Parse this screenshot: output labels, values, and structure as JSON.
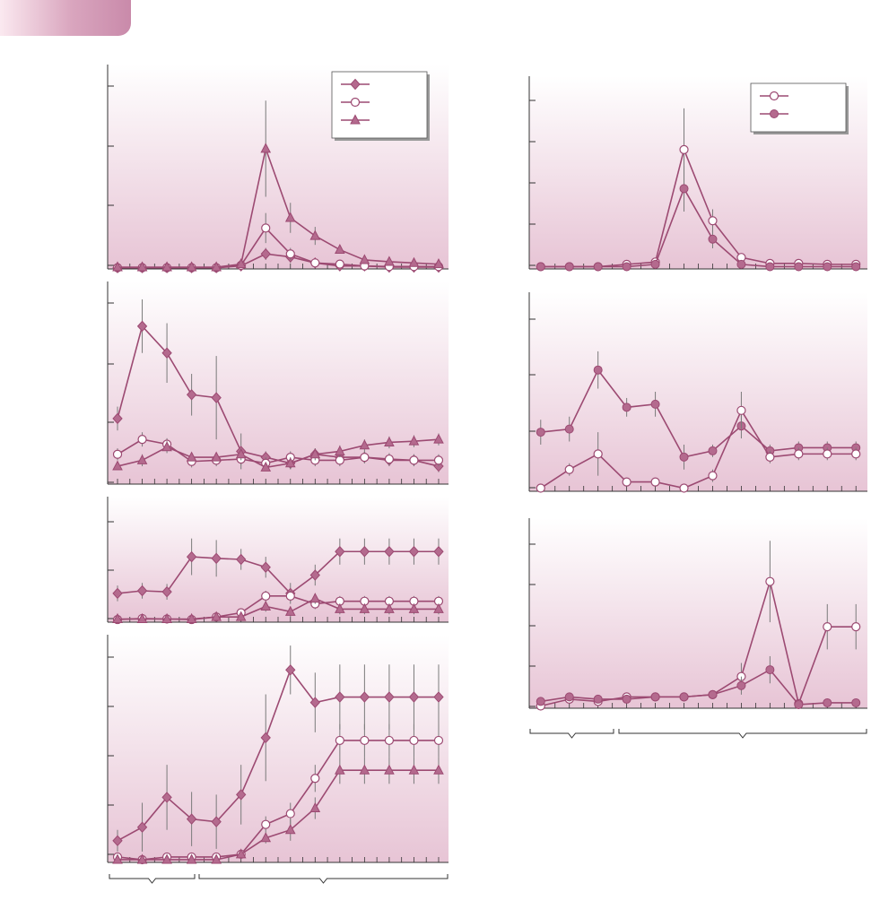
{
  "colors": {
    "series": "#9c4a72",
    "marker_fill": "#b46a8e",
    "open_fill": "#ffffff",
    "panel_top": "#ffffff",
    "panel_bottom": "#e7c4d5",
    "axis": "#333333",
    "errorbar": "#7a7a7a",
    "tab": "#d9a5be"
  },
  "chart_data": [
    {
      "type": "line",
      "title": "",
      "legend": {
        "position": "top-right",
        "entries": [
          "",
          "",
          ""
        ]
      },
      "x": [
        1,
        2,
        3,
        4,
        5,
        6,
        7,
        8,
        9,
        10,
        11,
        12,
        13,
        14
      ],
      "xlim": [
        0.6,
        14.4
      ],
      "ylim": [
        0,
        3.4
      ],
      "grid": false,
      "series": [
        {
          "marker": "diamond",
          "values": [
            0.02,
            0.02,
            0.02,
            0.02,
            0.02,
            0.05,
            0.25,
            0.2,
            0.1,
            0.05,
            0.05,
            0.03,
            0.03,
            0.03
          ],
          "error": [
            0,
            0,
            0,
            0,
            0,
            0,
            0.1,
            0.1,
            0.05,
            0,
            0,
            0,
            0,
            0
          ]
        },
        {
          "marker": "circle-open",
          "values": [
            0.02,
            0.02,
            0.02,
            0.02,
            0.02,
            0.06,
            0.68,
            0.25,
            0.1,
            0.08,
            0.05,
            0.04,
            0.04,
            0.04
          ],
          "error": [
            0,
            0,
            0,
            0,
            0,
            0,
            0.25,
            0.1,
            0.05,
            0,
            0,
            0,
            0,
            0
          ]
        },
        {
          "marker": "triangle",
          "values": [
            0.03,
            0.03,
            0.03,
            0.03,
            0.03,
            0.08,
            2.0,
            0.85,
            0.55,
            0.32,
            0.15,
            0.12,
            0.1,
            0.08
          ],
          "error": [
            0,
            0,
            0,
            0,
            0,
            0,
            0.8,
            0.25,
            0.15,
            0.05,
            0,
            0,
            0,
            0
          ]
        }
      ]
    },
    {
      "type": "line",
      "title": "",
      "legend": {
        "position": "top-right",
        "entries": [
          "",
          ""
        ]
      },
      "x": [
        1,
        2,
        3,
        4,
        5,
        6,
        7,
        8,
        9,
        10,
        11,
        12
      ],
      "xlim": [
        0.6,
        12.4
      ],
      "ylim": [
        0,
        4.2
      ],
      "grid": false,
      "series": [
        {
          "marker": "circle-open",
          "values": [
            0.05,
            0.05,
            0.05,
            0.1,
            0.15,
            2.6,
            1.05,
            0.25,
            0.12,
            0.12,
            0.1,
            0.1
          ],
          "error": [
            0,
            0,
            0,
            0,
            0,
            0.9,
            0.25,
            0.05,
            0,
            0,
            0,
            0
          ]
        },
        {
          "marker": "circle-filled",
          "values": [
            0.05,
            0.05,
            0.05,
            0.05,
            0.1,
            1.75,
            0.65,
            0.1,
            0.05,
            0.05,
            0.05,
            0.05
          ],
          "error": [
            0,
            0,
            0,
            0,
            0,
            0.5,
            0.2,
            0.05,
            0,
            0,
            0,
            0
          ]
        }
      ]
    },
    {
      "type": "line",
      "title": "",
      "x": [
        1,
        2,
        3,
        4,
        5,
        6,
        7,
        8,
        9,
        10,
        11,
        12,
        13,
        14
      ],
      "xlim": [
        0.6,
        14.4
      ],
      "ylim": [
        0,
        3.4
      ],
      "grid": false,
      "series": [
        {
          "marker": "diamond",
          "values": [
            1.1,
            2.65,
            2.2,
            1.5,
            1.45,
            0.55,
            0.45,
            0.35,
            0.5,
            0.45,
            0.45,
            0.4,
            0.4,
            0.3
          ],
          "error": [
            0.2,
            0.45,
            0.5,
            0.35,
            0.7,
            0.3,
            0.1,
            0.1,
            0.1,
            0.1,
            0.1,
            0.1,
            0.1,
            0.1
          ]
        },
        {
          "marker": "circle-open",
          "values": [
            0.5,
            0.75,
            0.67,
            0.38,
            0.4,
            0.42,
            0.35,
            0.45,
            0.4,
            0.4,
            0.45,
            0.42,
            0.4,
            0.4
          ],
          "error": [
            0.1,
            0.12,
            0.1,
            0.1,
            0.1,
            0.1,
            0.1,
            0.1,
            0.1,
            0.1,
            0.1,
            0.1,
            0.1,
            0.1
          ]
        },
        {
          "marker": "triangle",
          "values": [
            0.3,
            0.4,
            0.62,
            0.45,
            0.45,
            0.5,
            0.28,
            0.35,
            0.5,
            0.55,
            0.65,
            0.7,
            0.72,
            0.75
          ],
          "error": [
            0.05,
            0.1,
            0.1,
            0.05,
            0.05,
            0.1,
            0.05,
            0.1,
            0.1,
            0.1,
            0.1,
            0.1,
            0.1,
            0.1
          ]
        }
      ]
    },
    {
      "type": "line",
      "title": "",
      "x": [
        1,
        2,
        3,
        4,
        5,
        6,
        7,
        8,
        9,
        10,
        11,
        12
      ],
      "xlim": [
        0.6,
        12.4
      ],
      "ylim": [
        0,
        3.2
      ],
      "grid": false,
      "series": [
        {
          "marker": "circle-filled",
          "values": [
            0.95,
            1.0,
            1.95,
            1.35,
            1.4,
            0.55,
            0.65,
            1.05,
            0.65,
            0.7,
            0.7,
            0.7
          ],
          "error": [
            0.2,
            0.2,
            0.3,
            0.15,
            0.2,
            0.2,
            0.1,
            0.2,
            0.1,
            0.1,
            0.1,
            0.1
          ]
        },
        {
          "marker": "circle-open",
          "values": [
            0.05,
            0.35,
            0.6,
            0.15,
            0.15,
            0.05,
            0.25,
            1.3,
            0.55,
            0.6,
            0.6,
            0.6
          ],
          "error": [
            0.05,
            0.1,
            0.35,
            0.05,
            0.05,
            0.05,
            0.1,
            0.3,
            0.1,
            0.1,
            0.1,
            0.1
          ]
        }
      ]
    },
    {
      "type": "line",
      "title": "",
      "x": [
        1,
        2,
        3,
        4,
        5,
        6,
        7,
        8,
        9,
        10,
        11,
        12,
        13,
        14
      ],
      "xlim": [
        0.6,
        14.4
      ],
      "ylim": [
        0,
        2.4
      ],
      "grid": false,
      "series": [
        {
          "marker": "diamond",
          "values": [
            0.55,
            0.6,
            0.58,
            1.25,
            1.22,
            1.2,
            1.05,
            0.55,
            0.9,
            1.35,
            1.35,
            1.35,
            1.35,
            1.35
          ],
          "error": [
            0.15,
            0.15,
            0.15,
            0.35,
            0.35,
            0.2,
            0.2,
            0.2,
            0.2,
            0.25,
            0.25,
            0.25,
            0.25,
            0.25
          ]
        },
        {
          "marker": "circle-open",
          "values": [
            0.05,
            0.07,
            0.06,
            0.05,
            0.1,
            0.18,
            0.5,
            0.5,
            0.35,
            0.4,
            0.4,
            0.4,
            0.4,
            0.4
          ],
          "error": [
            0.03,
            0.03,
            0.03,
            0.03,
            0.05,
            0.05,
            0.1,
            0.1,
            0.1,
            0.1,
            0.1,
            0.1,
            0.1,
            0.1
          ]
        },
        {
          "marker": "triangle",
          "values": [
            0.06,
            0.06,
            0.06,
            0.06,
            0.1,
            0.1,
            0.3,
            0.2,
            0.45,
            0.25,
            0.25,
            0.25,
            0.25,
            0.25
          ],
          "error": [
            0.03,
            0.03,
            0.03,
            0.03,
            0.05,
            0.05,
            0.1,
            0.1,
            0.1,
            0.1,
            0.1,
            0.1,
            0.1,
            0.1
          ]
        }
      ]
    },
    {
      "type": "line",
      "title": "",
      "x": [
        1,
        2,
        3,
        4,
        5,
        6,
        7,
        8,
        9,
        10,
        11,
        12
      ],
      "xlim": [
        0.6,
        12.4
      ],
      "ylim": [
        0,
        4.2
      ],
      "grid": false,
      "series": [
        {
          "marker": "circle-open",
          "values": [
            0.05,
            0.2,
            0.15,
            0.25,
            0.25,
            0.25,
            0.3,
            0.7,
            2.8,
            0.1,
            1.8,
            1.8
          ],
          "error": [
            0.05,
            0.05,
            0.05,
            0.05,
            0.05,
            0.05,
            0.05,
            0.3,
            0.9,
            0.05,
            0.5,
            0.5
          ]
        },
        {
          "marker": "circle-filled",
          "values": [
            0.15,
            0.25,
            0.2,
            0.2,
            0.25,
            0.25,
            0.3,
            0.5,
            0.85,
            0.08,
            0.12,
            0.12
          ],
          "error": [
            0.05,
            0.05,
            0.05,
            0.05,
            0.05,
            0.05,
            0.05,
            0.2,
            0.3,
            0.05,
            0.05,
            0.05
          ]
        }
      ]
    },
    {
      "type": "line",
      "title": "",
      "x": [
        1,
        2,
        3,
        4,
        5,
        6,
        7,
        8,
        9,
        10,
        11,
        12,
        13,
        14
      ],
      "xlim": [
        0.6,
        14.4
      ],
      "ylim": [
        0,
        4.2
      ],
      "grid": false,
      "series": [
        {
          "marker": "diamond",
          "values": [
            0.4,
            0.65,
            1.2,
            0.8,
            0.75,
            1.25,
            2.3,
            3.55,
            2.95,
            3.05,
            3.05,
            3.05,
            3.05,
            3.05
          ],
          "error": [
            0.2,
            0.45,
            0.6,
            0.5,
            0.5,
            0.55,
            0.8,
            0.45,
            0.55,
            0.6,
            0.6,
            0.6,
            0.6,
            0.6
          ]
        },
        {
          "marker": "circle-open",
          "values": [
            0.1,
            0.05,
            0.1,
            0.1,
            0.1,
            0.15,
            0.7,
            0.9,
            1.55,
            2.25,
            2.25,
            2.25,
            2.25,
            2.25
          ],
          "error": [
            0.05,
            0.05,
            0.05,
            0.05,
            0.05,
            0.05,
            0.15,
            0.2,
            0.25,
            0.3,
            0.3,
            0.3,
            0.3,
            0.3
          ]
        },
        {
          "marker": "triangle",
          "values": [
            0.05,
            0.05,
            0.05,
            0.05,
            0.05,
            0.15,
            0.45,
            0.6,
            1.0,
            1.7,
            1.7,
            1.7,
            1.7,
            1.7
          ],
          "error": [
            0.03,
            0.03,
            0.03,
            0.03,
            0.03,
            0.05,
            0.1,
            0.2,
            0.2,
            0.25,
            0.25,
            0.25,
            0.25,
            0.25
          ]
        }
      ]
    }
  ]
}
